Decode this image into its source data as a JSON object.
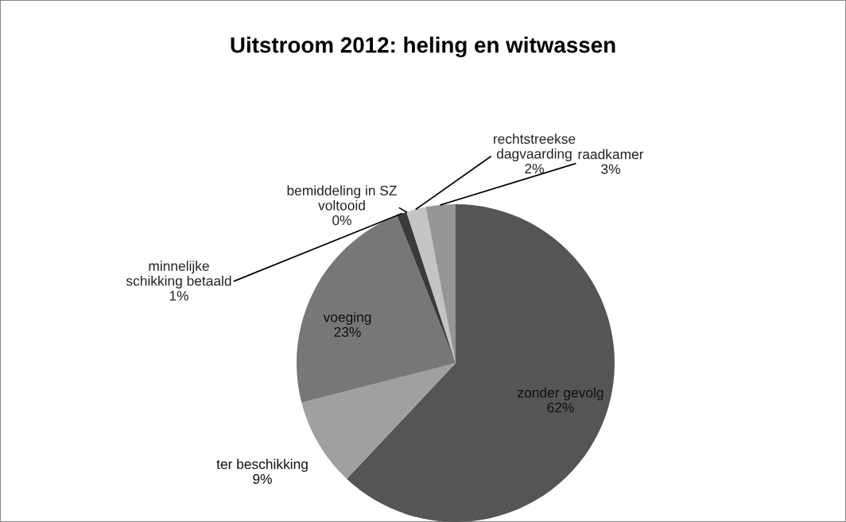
{
  "chart_data": {
    "type": "pie",
    "title": "Uitstroom 2012: heling en witwassen",
    "categories": [
      "zonder gevolg",
      "ter beschikking",
      "voeging",
      "minnelijke\nschikking betaald",
      "bemiddeling in SZ\nvoltooid",
      "rechtstreekse\ndagvaarding",
      "raadkamer"
    ],
    "values": [
      62,
      9,
      23,
      1,
      0,
      2,
      3
    ],
    "colors": [
      "#555555",
      "#a0a0a0",
      "#777777",
      "#3a3a3a",
      "#d0d0d0",
      "#c4c4c4",
      "#969696"
    ],
    "value_labels": [
      "62%",
      "9%",
      "23%",
      "1%",
      "0%",
      "2%",
      "3%"
    ],
    "legend": false
  }
}
